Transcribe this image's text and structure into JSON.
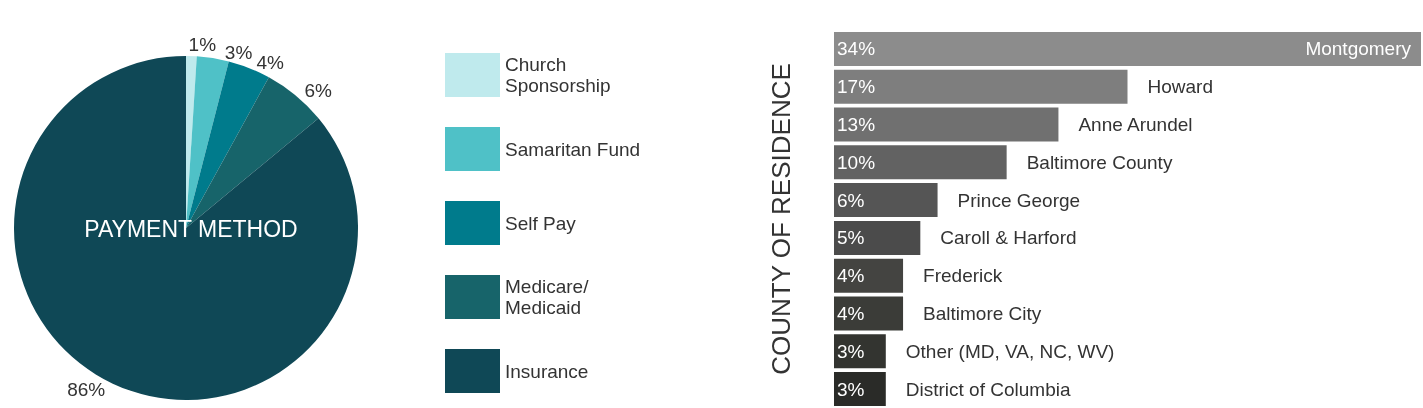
{
  "chart_data": [
    {
      "type": "pie",
      "title": "PAYMENT METHOD",
      "categories": [
        "Church Sponsorship",
        "Samaritan Fund",
        "Self Pay",
        "Medicare/ Medicaid",
        "Insurance"
      ],
      "values": [
        1,
        3,
        4,
        6,
        86
      ],
      "colors": [
        "#bfeaed",
        "#4fc1c7",
        "#007b8c",
        "#17646a",
        "#0f4856"
      ],
      "value_labels": [
        "1%",
        "3%",
        "4%",
        "6%",
        "86%"
      ],
      "legend": "right"
    },
    {
      "type": "bar",
      "orientation": "horizontal",
      "ylabel": "COUNTY OF RESIDENCE",
      "categories": [
        "Montgomery",
        "Howard",
        "Anne Arundel",
        "Baltimore County",
        "Prince George",
        "Caroll & Harford",
        "Frederick",
        "Baltimore City",
        "Other (MD, VA, NC, WV)",
        "District of Columbia"
      ],
      "values": [
        34,
        17,
        13,
        10,
        6,
        5,
        4,
        4,
        3,
        3
      ],
      "colors": [
        "#8c8c8c",
        "#7e7e7e",
        "#707070",
        "#626262",
        "#555555",
        "#4b4b4b",
        "#444441",
        "#3b3c38",
        "#333430",
        "#2a2b28"
      ],
      "value_labels": [
        "34%",
        "17%",
        "13%",
        "10%",
        "6%",
        "5%",
        "4%",
        "4%",
        "3%",
        "3%"
      ]
    }
  ]
}
